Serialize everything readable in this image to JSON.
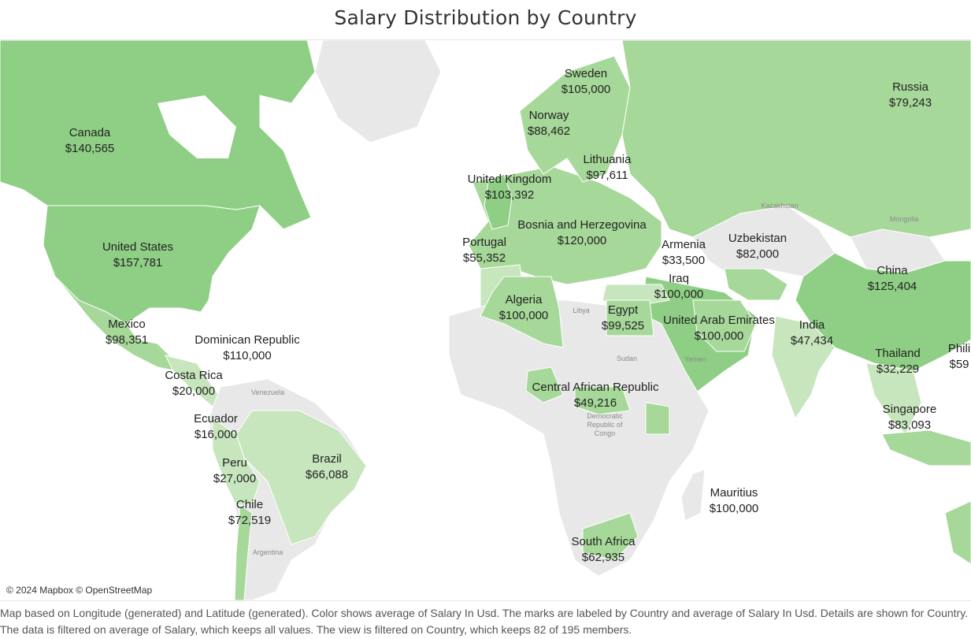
{
  "title": "Salary Distribution by Country",
  "attribution": "© 2024 Mapbox © OpenStreetMap",
  "caption": "Map based on Longitude (generated) and Latitude (generated).  Color shows average of Salary In Usd.  The marks are labeled by Country and average of Salary In Usd.  Details are shown for Country. The data is filtered on average of Salary, which keeps all values. The view is filtered on Country, which keeps 82 of 195 members.",
  "colors": {
    "high": "#8fcf85",
    "mid": "#a6d899",
    "low": "#c7e6bd",
    "none": "#e8e8e8",
    "border": "#ffffff",
    "water": "#ffffff"
  },
  "countries": [
    {
      "name": "Canada",
      "value": "$140,565"
    },
    {
      "name": "United States",
      "value": "$157,781"
    },
    {
      "name": "Mexico",
      "value": "$98,351"
    },
    {
      "name": "Dominican Republic",
      "value": "$110,000"
    },
    {
      "name": "Costa Rica",
      "value": "$20,000"
    },
    {
      "name": "Ecuador",
      "value": "$16,000"
    },
    {
      "name": "Peru",
      "value": "$27,000"
    },
    {
      "name": "Chile",
      "value": "$72,519"
    },
    {
      "name": "Brazil",
      "value": "$66,088"
    },
    {
      "name": "Sweden",
      "value": "$105,000"
    },
    {
      "name": "Norway",
      "value": "$88,462"
    },
    {
      "name": "Lithuania",
      "value": "$97,611"
    },
    {
      "name": "United Kingdom",
      "value": "$103,392"
    },
    {
      "name": "Bosnia and Herzegovina",
      "value": "$120,000"
    },
    {
      "name": "Portugal",
      "value": "$55,352"
    },
    {
      "name": "Armenia",
      "value": "$33,500"
    },
    {
      "name": "Uzbekistan",
      "value": "$82,000"
    },
    {
      "name": "Iraq",
      "value": "$100,000"
    },
    {
      "name": "Algeria",
      "value": "$100,000"
    },
    {
      "name": "Egypt",
      "value": "$99,525"
    },
    {
      "name": "United Arab Emirates",
      "value": "$100,000"
    },
    {
      "name": "Central African Republic",
      "value": "$49,216"
    },
    {
      "name": "South Africa",
      "value": "$62,935"
    },
    {
      "name": "Mauritius",
      "value": "$100,000"
    },
    {
      "name": "Russia",
      "value": "$79,243"
    },
    {
      "name": "China",
      "value": "$125,404"
    },
    {
      "name": "India",
      "value": "$47,434"
    },
    {
      "name": "Thailand",
      "value": "$32,229"
    },
    {
      "name": "Singapore",
      "value": "$83,093"
    },
    {
      "name": "Phili",
      "value": "$59"
    }
  ],
  "base_labels": [
    "Kazakhstan",
    "Mongolia",
    "Libya",
    "Sudan",
    "Yemen",
    "Venezuela",
    "Democratic Republic of Congo",
    "Argentina"
  ]
}
